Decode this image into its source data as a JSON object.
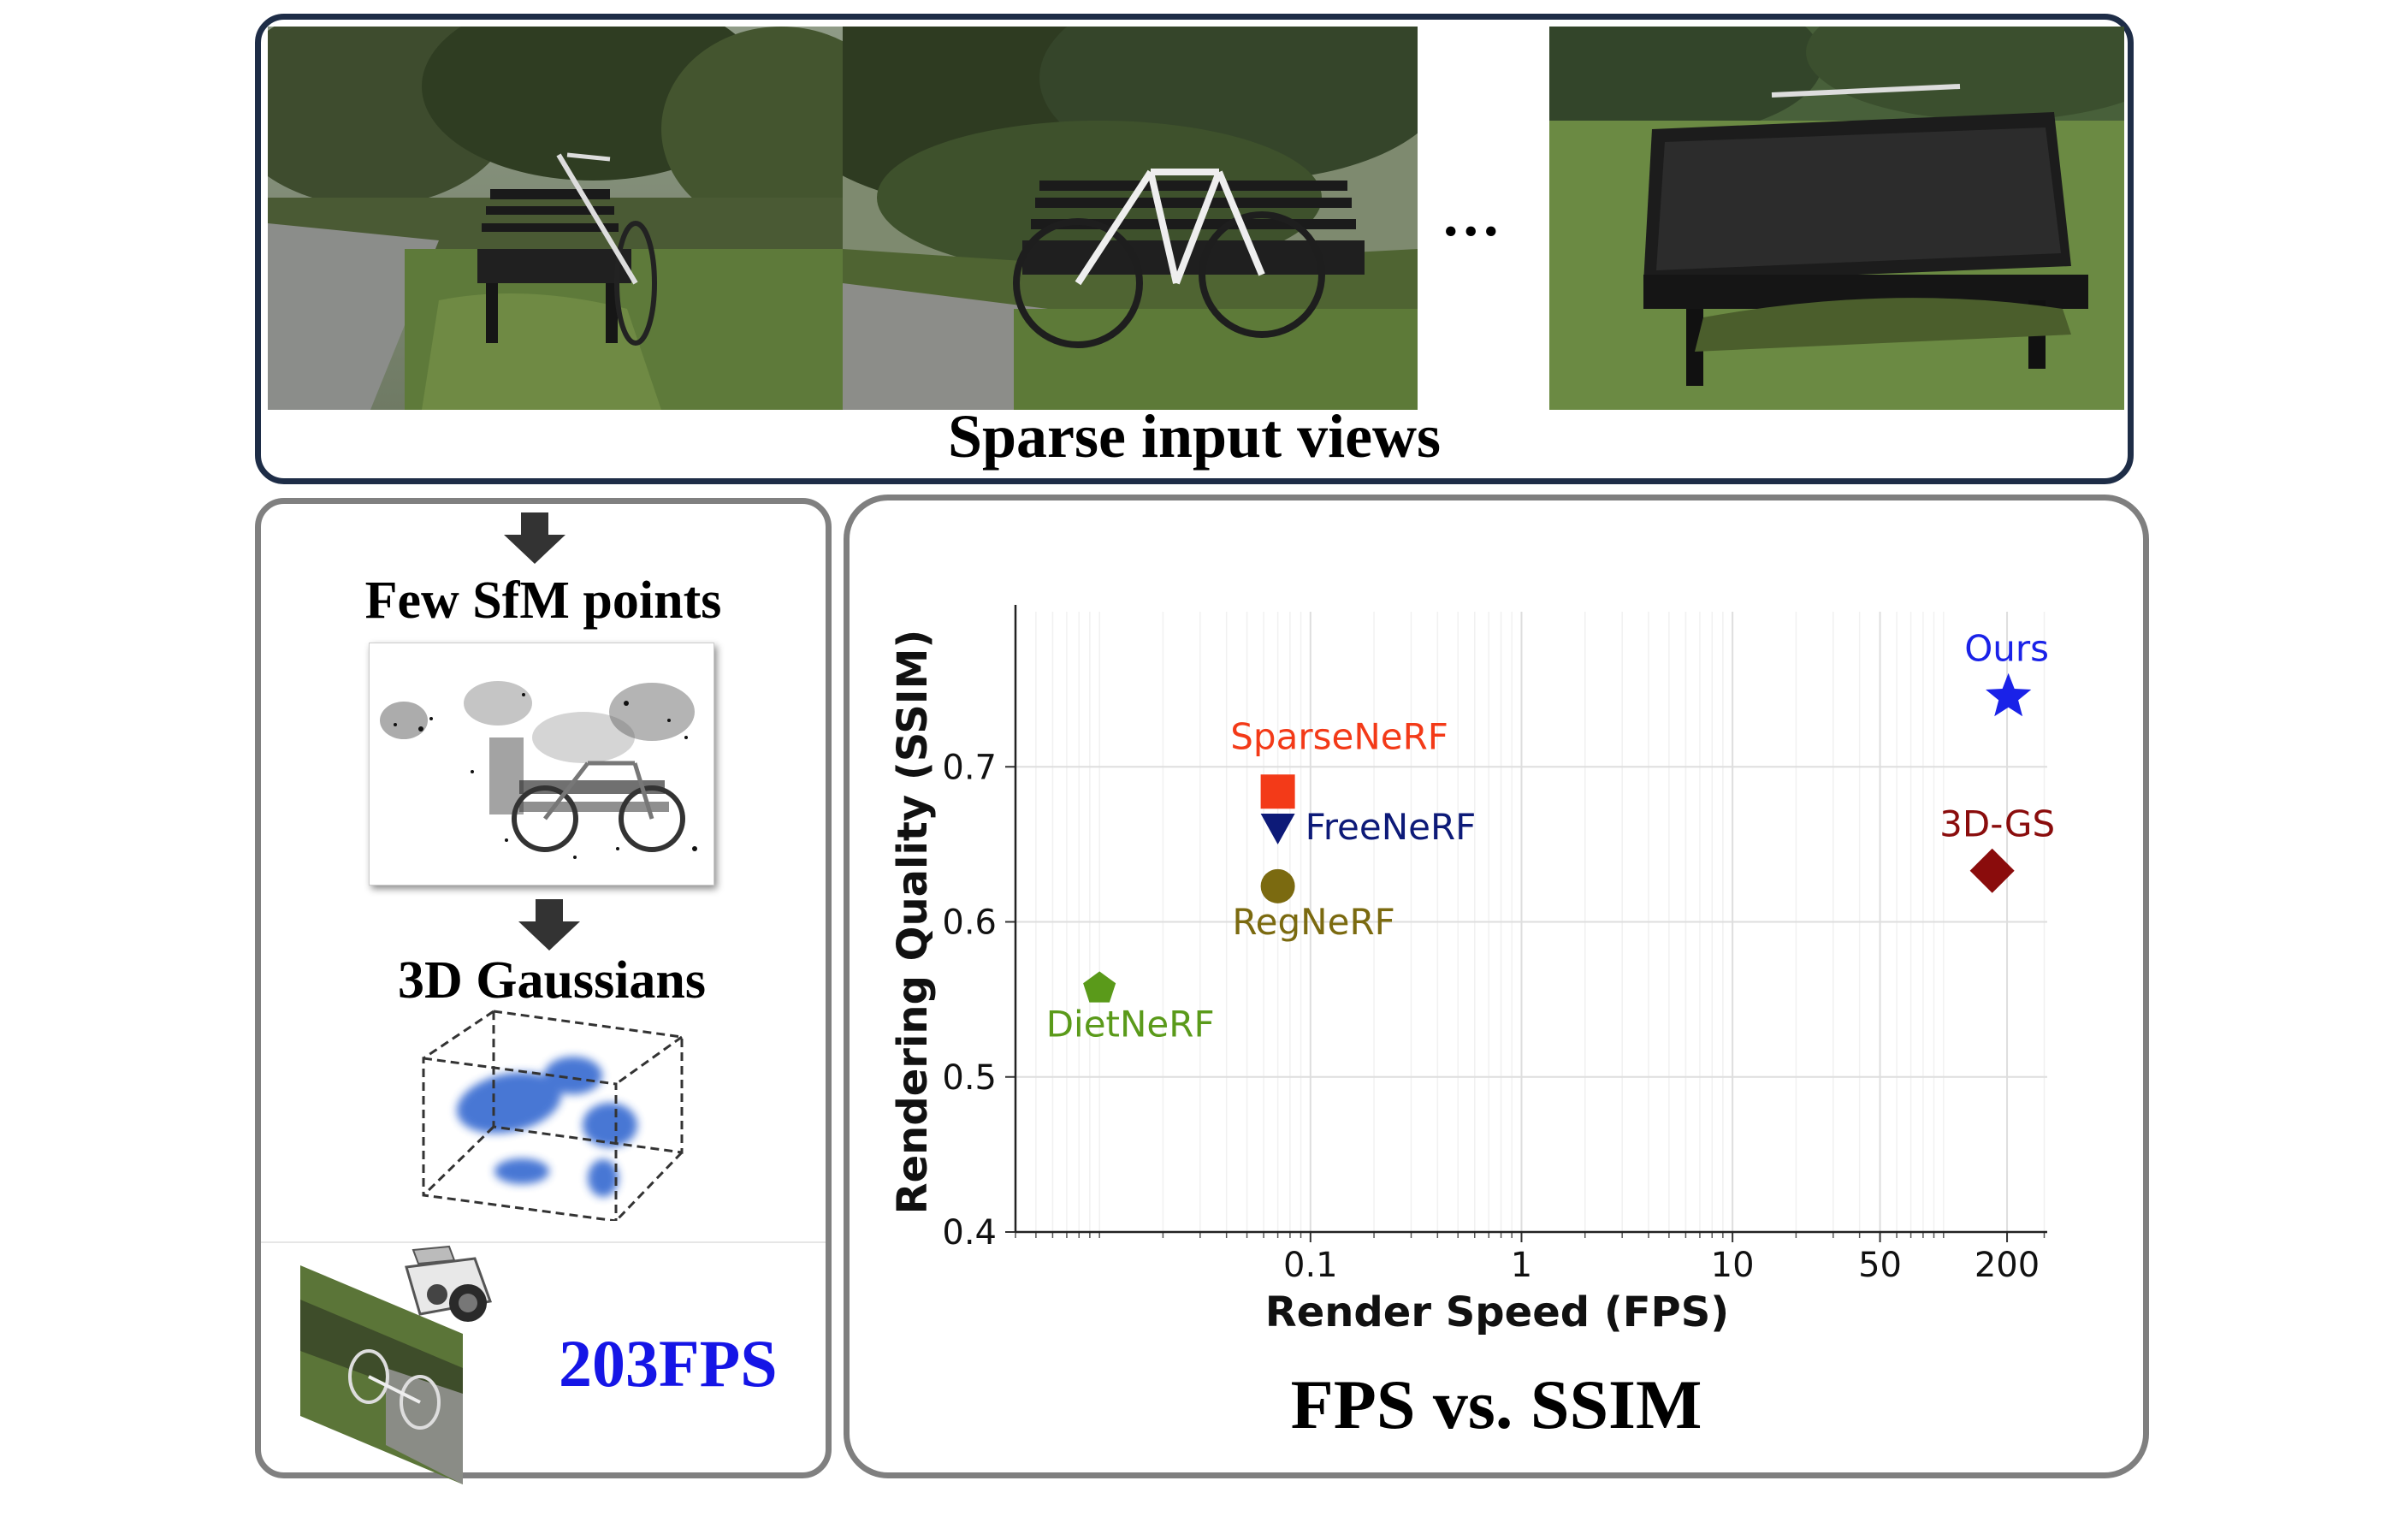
{
  "top": {
    "caption": "Sparse input views",
    "ellipsis": "..."
  },
  "left": {
    "sfm_label": "Few SfM points",
    "gaussians_label": "3D Gaussians",
    "fps_value": "203FPS",
    "fps_color": "#1515e6"
  },
  "right": {
    "caption": "FPS vs. SSIM"
  },
  "chart_data": {
    "type": "scatter",
    "xlabel": "Render Speed (FPS)",
    "ylabel": "Rendering Quality (SSIM)",
    "x_scale": "log",
    "xlim": [
      0.004,
      310
    ],
    "ylim": [
      0.4,
      0.8
    ],
    "x_ticks": [
      0.1,
      1,
      10,
      50,
      200
    ],
    "x_tick_labels": [
      "0.1",
      "1",
      "10",
      "50",
      "200"
    ],
    "y_ticks": [
      0.4,
      0.5,
      0.6,
      0.7
    ],
    "y_tick_labels": [
      "0.4",
      "0.5",
      "0.6",
      "0.7"
    ],
    "grid": true,
    "points": [
      {
        "name": "DietNeRF",
        "x": 0.01,
        "y": 0.557,
        "marker": "pentagon",
        "color": "#5a9a1a"
      },
      {
        "name": "RegNeRF",
        "x": 0.07,
        "y": 0.623,
        "marker": "circle",
        "color": "#7b6a10"
      },
      {
        "name": "FreeNeRF",
        "x": 0.07,
        "y": 0.661,
        "marker": "triangle-down",
        "color": "#0d1a78"
      },
      {
        "name": "SparseNeRF",
        "x": 0.07,
        "y": 0.684,
        "marker": "square",
        "color": "#f33a18"
      },
      {
        "name": "3D-GS",
        "x": 170,
        "y": 0.633,
        "marker": "diamond",
        "color": "#8a0c0c"
      },
      {
        "name": "Ours",
        "x": 203,
        "y": 0.745,
        "marker": "star",
        "color": "#1a22e8"
      }
    ]
  }
}
